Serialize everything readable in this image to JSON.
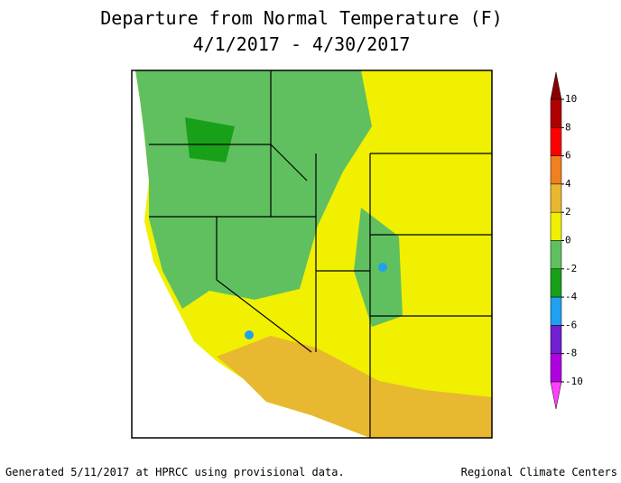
{
  "title": [
    "Departure from Normal Temperature (F)",
    "4/1/2017 - 4/30/2017"
  ],
  "legend": {
    "labels": [
      10,
      8,
      6,
      4,
      2,
      0,
      -2,
      -4,
      -6,
      -8,
      -10
    ],
    "colors": [
      "#8b0000",
      "#b00000",
      "#ff0000",
      "#f08020",
      "#e8b830",
      "#f0f000",
      "#60c060",
      "#18a018",
      "#20a0f0",
      "#7020d0",
      "#b000e0",
      "#ff40ff"
    ]
  },
  "footer": {
    "left": "Generated 5/11/2017 at HPRCC using provisional data.",
    "right": "Regional Climate Centers"
  }
}
